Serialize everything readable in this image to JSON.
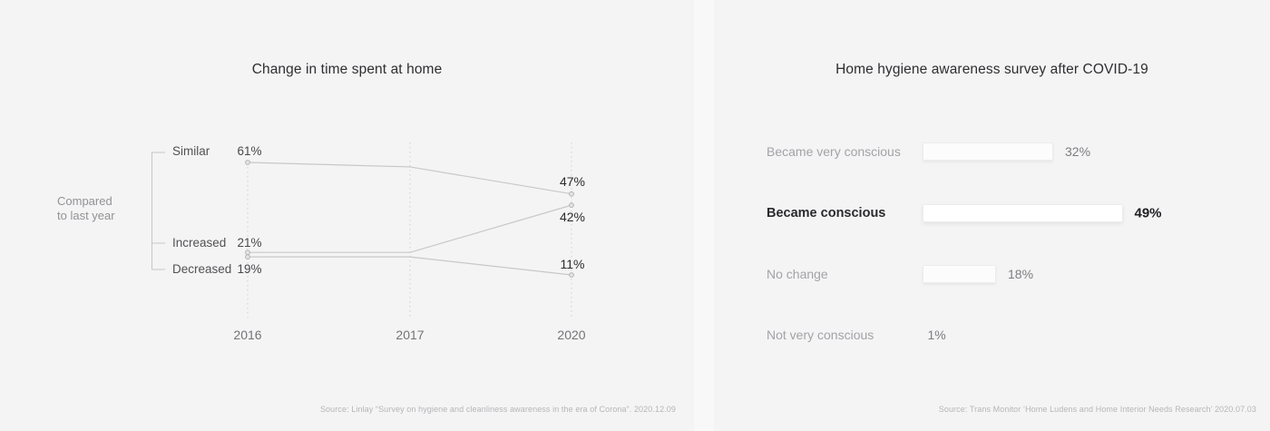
{
  "chart_data": [
    {
      "type": "line",
      "title": "Change in time spent at home",
      "x_labels": [
        "2016",
        "2017",
        "2020"
      ],
      "group_label_lines": [
        "Compared",
        "to last year"
      ],
      "series": [
        {
          "name": "Similar",
          "values": [
            61,
            59,
            47
          ],
          "start_label": "61%",
          "end_label": "47%"
        },
        {
          "name": "Increased",
          "values": [
            21,
            21,
            42
          ],
          "start_label": "21%",
          "end_label": "42%"
        },
        {
          "name": "Decreased",
          "values": [
            19,
            19,
            11
          ],
          "start_label": "19%",
          "end_label": "11%"
        }
      ],
      "unit": "%",
      "ylim": [
        0,
        70
      ],
      "grid": "dotted-vertical-columns",
      "source": "Source: Linlay “Survey on hygiene and cleanliness awareness in the era of Corona”. 2020.12.09"
    },
    {
      "type": "bar",
      "orientation": "horizontal",
      "title": "Home hygiene awareness survey after COVID-19",
      "categories": [
        "Became very conscious",
        "Became conscious",
        "No change",
        "Not very conscious"
      ],
      "values": [
        32,
        49,
        18,
        1
      ],
      "value_labels": [
        "32%",
        "49%",
        "18%",
        "1%"
      ],
      "unit": "%",
      "highlight_index": 1,
      "xlim": [
        0,
        100
      ],
      "grid": "off",
      "source": "Source: Trans Monitor ‘Home Ludens and Home Interior Needs Research’ 2020.07.03"
    }
  ]
}
